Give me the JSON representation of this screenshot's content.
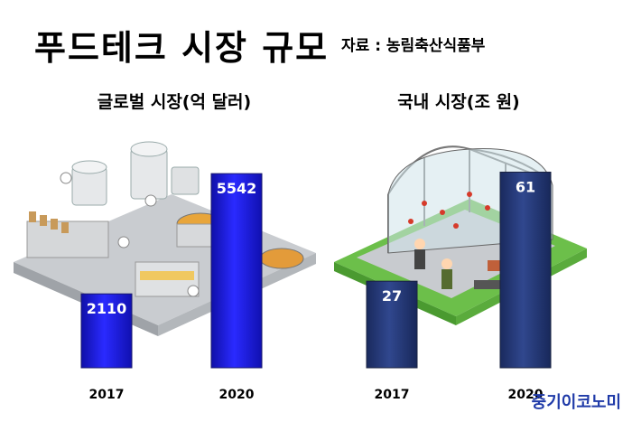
{
  "header": {
    "title": "푸드테크 시장 규모",
    "source": "자료 : 농림축산식품부"
  },
  "colors": {
    "global_bar": "#1c1ce0",
    "domestic_bar": "#243a78",
    "logo": "#1f3aa8"
  },
  "icons": [
    "food-factory-illustration",
    "greenhouse-illustration"
  ],
  "chart_data": [
    {
      "type": "bar",
      "title": "글로벌 시장(억 달러)",
      "categories": [
        "2017",
        "2020"
      ],
      "values": [
        2110,
        5542
      ],
      "xlabel": "",
      "ylabel": "",
      "ylim": [
        0,
        6500
      ],
      "grid": false
    },
    {
      "type": "bar",
      "title": "국내 시장(조 원)",
      "categories": [
        "2017",
        "2020"
      ],
      "values": [
        27,
        61
      ],
      "xlabel": "",
      "ylabel": "",
      "ylim": [
        0,
        71
      ],
      "grid": false
    }
  ],
  "footer": {
    "logo_text": "중기이코노미"
  }
}
